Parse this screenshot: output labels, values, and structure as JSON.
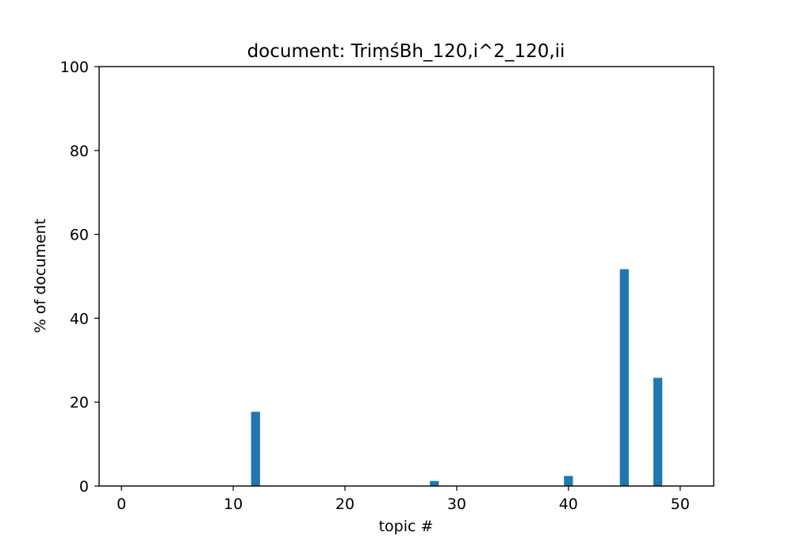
{
  "chart_data": {
    "type": "bar",
    "title": "document: TriṃśBh_120,i^2_120,ii",
    "xlabel": "topic #",
    "ylabel": "% of document",
    "xlim": [
      -2,
      53
    ],
    "ylim": [
      0,
      100
    ],
    "xticks": [
      0,
      10,
      20,
      30,
      40,
      50
    ],
    "yticks": [
      0,
      20,
      40,
      60,
      80,
      100
    ],
    "grid": false,
    "bar_color": "#1f77b4",
    "series": [
      {
        "values": [
          0,
          0,
          0,
          0,
          0,
          0,
          0,
          0,
          0,
          0,
          0,
          0,
          17.7,
          0,
          0,
          0,
          0,
          0,
          0,
          0,
          0,
          0,
          0,
          0,
          0,
          0,
          0,
          0,
          1.2,
          0,
          0,
          0,
          0,
          0,
          0,
          0,
          0,
          0,
          0,
          0,
          2.4,
          0,
          0,
          0,
          0,
          51.7,
          0,
          0,
          25.8,
          0,
          0
        ]
      }
    ]
  }
}
